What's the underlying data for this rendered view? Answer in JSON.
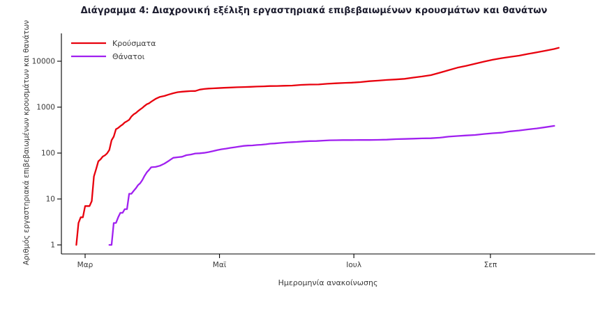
{
  "chart_data": {
    "type": "line",
    "title": "Διάγραμμα 4: Διαχρονική εξέλιξη εργαστηριακά επιβεβαιωμένων κρουσμάτων και θανάτων",
    "xlabel": "Ημερομηνία ανακοίνωσης",
    "ylabel": "Αριθμός εργαστηριακά επιβεβαιωμένων κρουσμάτων και θανάτων",
    "y_scale": "log10",
    "y_ticks": [
      1,
      10,
      100,
      1000,
      10000
    ],
    "ylim": [
      1,
      25000
    ],
    "x_unit": "day_of_year_2020",
    "x_ticks": [
      {
        "day": 61,
        "label": "Μαρ"
      },
      {
        "day": 122,
        "label": "Μαϊ"
      },
      {
        "day": 183,
        "label": "Ιουλ"
      },
      {
        "day": 245,
        "label": "Σεπ"
      }
    ],
    "xlim": [
      52,
      282
    ],
    "legend_position": "top-left",
    "grid": false,
    "series": [
      {
        "name": "Κρούσματα",
        "color": "#e8000d",
        "points": [
          [
            57,
            1
          ],
          [
            58,
            3
          ],
          [
            59,
            4
          ],
          [
            60,
            4
          ],
          [
            61,
            7
          ],
          [
            62,
            7
          ],
          [
            63,
            7
          ],
          [
            64,
            9
          ],
          [
            65,
            31
          ],
          [
            66,
            45
          ],
          [
            67,
            66
          ],
          [
            68,
            73
          ],
          [
            69,
            84
          ],
          [
            70,
            89
          ],
          [
            71,
            99
          ],
          [
            72,
            117
          ],
          [
            73,
            190
          ],
          [
            74,
            228
          ],
          [
            75,
            331
          ],
          [
            76,
            352
          ],
          [
            77,
            387
          ],
          [
            78,
            418
          ],
          [
            79,
            464
          ],
          [
            80,
            495
          ],
          [
            81,
            530
          ],
          [
            82,
            624
          ],
          [
            83,
            695
          ],
          [
            84,
            743
          ],
          [
            85,
            821
          ],
          [
            86,
            892
          ],
          [
            87,
            966
          ],
          [
            88,
            1061
          ],
          [
            89,
            1156
          ],
          [
            90,
            1212
          ],
          [
            91,
            1314
          ],
          [
            93,
            1514
          ],
          [
            95,
            1673
          ],
          [
            97,
            1755
          ],
          [
            99,
            1884
          ],
          [
            101,
            2011
          ],
          [
            103,
            2114
          ],
          [
            105,
            2170
          ],
          [
            107,
            2207
          ],
          [
            109,
            2235
          ],
          [
            111,
            2245
          ],
          [
            113,
            2408
          ],
          [
            115,
            2490
          ],
          [
            117,
            2534
          ],
          [
            119,
            2566
          ],
          [
            121,
            2591
          ],
          [
            124,
            2642
          ],
          [
            127,
            2678
          ],
          [
            130,
            2710
          ],
          [
            133,
            2744
          ],
          [
            136,
            2770
          ],
          [
            139,
            2810
          ],
          [
            142,
            2840
          ],
          [
            145,
            2874
          ],
          [
            148,
            2892
          ],
          [
            151,
            2915
          ],
          [
            155,
            2952
          ],
          [
            159,
            3049
          ],
          [
            163,
            3112
          ],
          [
            167,
            3121
          ],
          [
            171,
            3227
          ],
          [
            175,
            3310
          ],
          [
            179,
            3376
          ],
          [
            182,
            3409
          ],
          [
            186,
            3511
          ],
          [
            190,
            3672
          ],
          [
            194,
            3772
          ],
          [
            198,
            3910
          ],
          [
            202,
            4007
          ],
          [
            206,
            4135
          ],
          [
            210,
            4401
          ],
          [
            214,
            4662
          ],
          [
            218,
            4974
          ],
          [
            222,
            5623
          ],
          [
            226,
            6381
          ],
          [
            230,
            7222
          ],
          [
            234,
            7934
          ],
          [
            238,
            8819
          ],
          [
            242,
            9800
          ],
          [
            246,
            10757
          ],
          [
            250,
            11663
          ],
          [
            254,
            12452
          ],
          [
            258,
            13240
          ],
          [
            262,
            14400
          ],
          [
            266,
            15595
          ],
          [
            270,
            16913
          ],
          [
            274,
            18475
          ],
          [
            276,
            19613
          ]
        ]
      },
      {
        "name": "Θάνατοι",
        "color": "#a020f0",
        "points": [
          [
            72,
            1
          ],
          [
            73,
            1
          ],
          [
            74,
            3
          ],
          [
            75,
            3
          ],
          [
            76,
            4
          ],
          [
            77,
            5
          ],
          [
            78,
            5
          ],
          [
            79,
            6
          ],
          [
            80,
            6
          ],
          [
            81,
            13
          ],
          [
            82,
            13
          ],
          [
            83,
            15
          ],
          [
            84,
            17
          ],
          [
            85,
            20
          ],
          [
            86,
            22
          ],
          [
            87,
            26
          ],
          [
            88,
            32
          ],
          [
            89,
            38
          ],
          [
            90,
            43
          ],
          [
            91,
            49
          ],
          [
            93,
            50
          ],
          [
            95,
            53
          ],
          [
            97,
            59
          ],
          [
            99,
            68
          ],
          [
            101,
            79
          ],
          [
            103,
            81
          ],
          [
            105,
            83
          ],
          [
            107,
            90
          ],
          [
            109,
            93
          ],
          [
            111,
            98
          ],
          [
            113,
            99
          ],
          [
            115,
            101
          ],
          [
            117,
            105
          ],
          [
            119,
            110
          ],
          [
            121,
            116
          ],
          [
            123,
            121
          ],
          [
            125,
            125
          ],
          [
            127,
            130
          ],
          [
            129,
            134
          ],
          [
            131,
            139
          ],
          [
            133,
            143
          ],
          [
            135,
            146
          ],
          [
            137,
            147
          ],
          [
            139,
            150
          ],
          [
            141,
            152
          ],
          [
            143,
            155
          ],
          [
            145,
            160
          ],
          [
            147,
            162
          ],
          [
            149,
            165
          ],
          [
            151,
            168
          ],
          [
            153,
            171
          ],
          [
            155,
            173
          ],
          [
            157,
            175
          ],
          [
            160,
            179
          ],
          [
            163,
            182
          ],
          [
            166,
            183
          ],
          [
            169,
            187
          ],
          [
            172,
            190
          ],
          [
            175,
            191
          ],
          [
            178,
            192
          ],
          [
            182,
            192
          ],
          [
            186,
            193
          ],
          [
            190,
            193
          ],
          [
            194,
            194
          ],
          [
            198,
            196
          ],
          [
            202,
            201
          ],
          [
            206,
            203
          ],
          [
            210,
            206
          ],
          [
            214,
            209
          ],
          [
            218,
            210
          ],
          [
            222,
            216
          ],
          [
            226,
            228
          ],
          [
            230,
            235
          ],
          [
            234,
            242
          ],
          [
            238,
            248
          ],
          [
            242,
            260
          ],
          [
            246,
            270
          ],
          [
            250,
            278
          ],
          [
            254,
            297
          ],
          [
            258,
            310
          ],
          [
            262,
            327
          ],
          [
            266,
            344
          ],
          [
            270,
            366
          ],
          [
            274,
            391
          ]
        ]
      }
    ]
  }
}
